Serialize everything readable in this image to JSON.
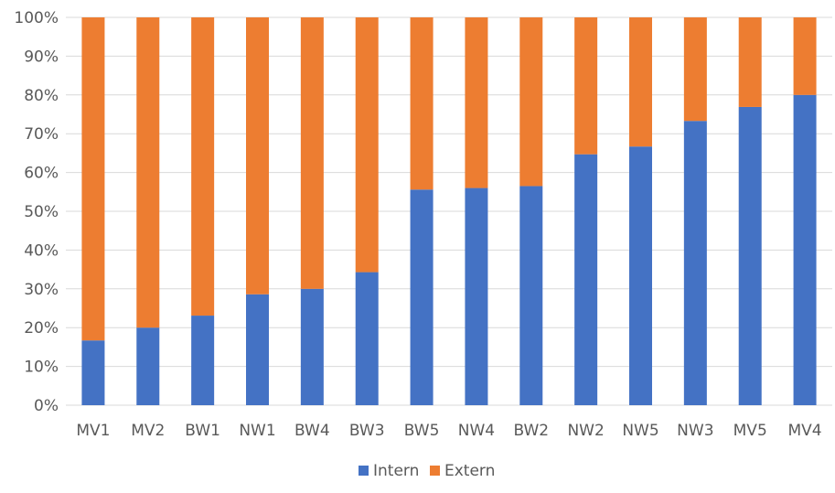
{
  "chart_data": {
    "type": "bar",
    "stacked": true,
    "percent": true,
    "categories": [
      "MV1",
      "MV2",
      "BW1",
      "NW1",
      "BW4",
      "BW3",
      "BW5",
      "NW4",
      "BW2",
      "NW2",
      "NW5",
      "NW3",
      "MV5",
      "MV4"
    ],
    "series": [
      {
        "name": "Intern",
        "color": "#4472C4",
        "values": [
          16.7,
          20,
          23.1,
          28.6,
          30,
          34.3,
          55.6,
          56,
          56.5,
          64.7,
          66.7,
          73.3,
          76.9,
          80
        ]
      },
      {
        "name": "Extern",
        "color": "#ED7D31",
        "values": [
          83.3,
          80,
          76.9,
          71.4,
          70,
          65.7,
          44.4,
          44,
          43.5,
          35.3,
          33.3,
          26.7,
          23.1,
          20
        ]
      }
    ],
    "yticks": [
      "0%",
      "10%",
      "20%",
      "30%",
      "40%",
      "50%",
      "60%",
      "70%",
      "80%",
      "90%",
      "100%"
    ],
    "ylim": [
      0,
      100
    ],
    "grid": true,
    "legend_position": "bottom",
    "title": "",
    "xlabel": "",
    "ylabel": ""
  }
}
